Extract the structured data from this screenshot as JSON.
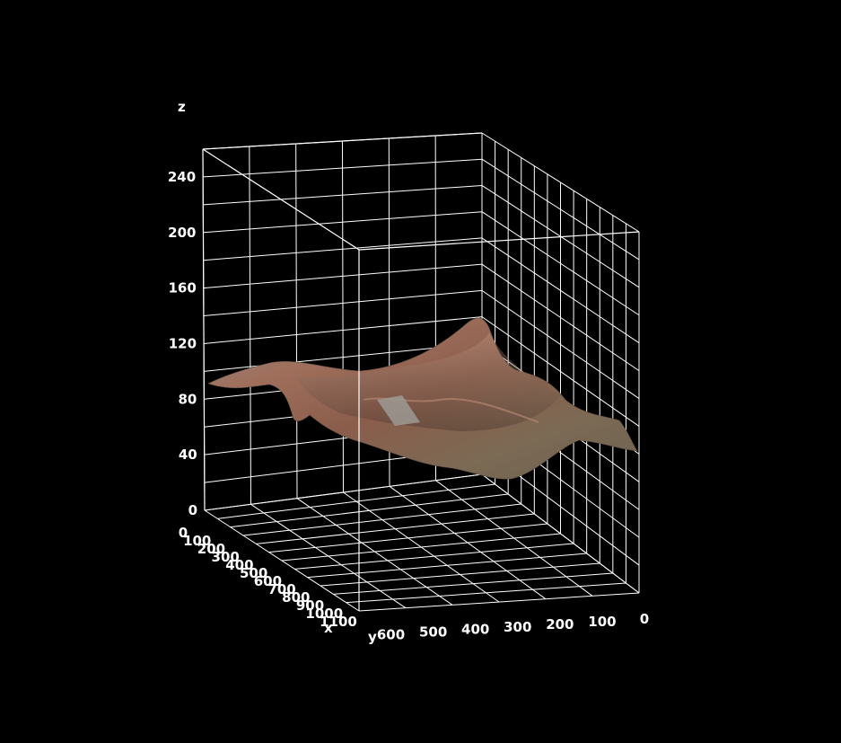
{
  "chart_data": {
    "type": "surface",
    "title": "",
    "background": "#000000",
    "grid_color": "#ffffff",
    "surface_texture_colors": [
      "#9a6a58",
      "#7d5a48",
      "#8c8c84",
      "#b47e66",
      "#6f6a55"
    ],
    "axes": {
      "x": {
        "label": "x",
        "range": [
          0,
          1100
        ],
        "ticks": [
          "0",
          "100",
          "200",
          "300",
          "400",
          "500",
          "600",
          "700",
          "800",
          "900",
          "1000",
          "1100"
        ]
      },
      "y": {
        "label": "y",
        "range": [
          0,
          650
        ],
        "ticks": [
          "0",
          "100",
          "200",
          "300",
          "400",
          "500",
          "600"
        ]
      },
      "z": {
        "label": "z",
        "range": [
          0,
          260
        ],
        "ticks": [
          "0",
          "40",
          "80",
          "120",
          "160",
          "200",
          "240"
        ]
      }
    },
    "grid": true,
    "surface_profile_front_edge": [
      {
        "x": 0,
        "z": 90
      },
      {
        "x": 200,
        "z": 96
      },
      {
        "x": 400,
        "z": 82
      },
      {
        "x": 600,
        "z": 70
      },
      {
        "x": 800,
        "z": 58
      },
      {
        "x": 1100,
        "z": 52
      }
    ]
  }
}
